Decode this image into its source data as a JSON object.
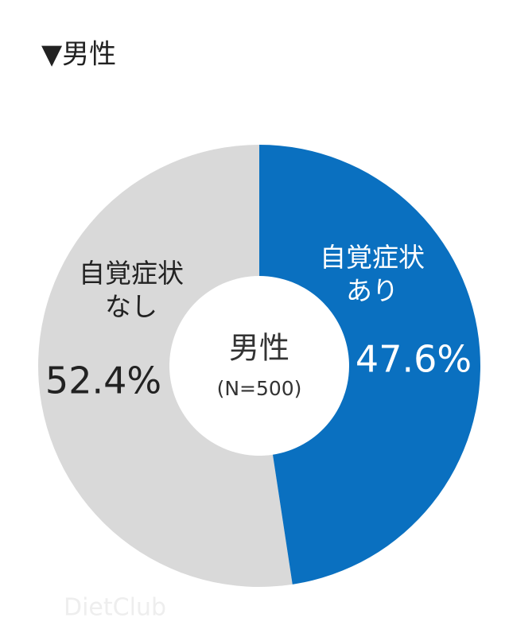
{
  "chart_data": {
    "type": "donut",
    "title": "▼男性",
    "center_title": "男性",
    "center_subtitle": "(N=500)",
    "categories": [
      "自覚症状あり",
      "自覚症状なし"
    ],
    "values": [
      47.6,
      52.4
    ],
    "value_labels": [
      "47.6%",
      "52.4%"
    ],
    "colors": [
      "#0a70c0",
      "#d9d9d9"
    ],
    "watermark": "DietClub"
  }
}
